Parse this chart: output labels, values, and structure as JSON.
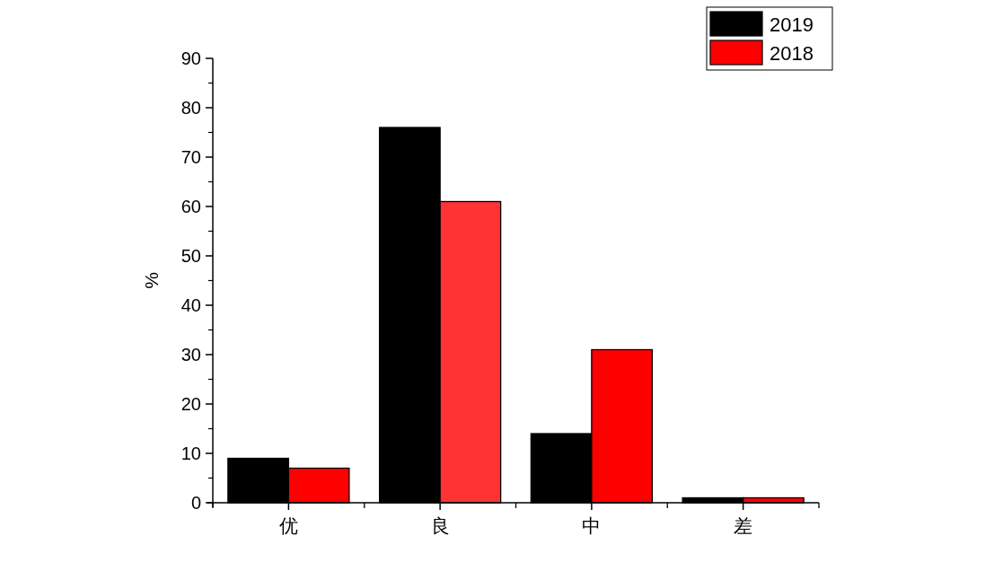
{
  "chart_data": {
    "type": "bar",
    "ylabel": "%",
    "categories": [
      "优",
      "良",
      "中",
      "差"
    ],
    "series": [
      {
        "name": "2019",
        "color": "#000000",
        "values": [
          9,
          76,
          14,
          1
        ]
      },
      {
        "name": "2018",
        "color": "#ff0000",
        "colors": [
          "#ff0000",
          "#ff3333",
          "#ff0000",
          "#ff0000"
        ],
        "values": [
          7,
          61,
          31,
          1
        ]
      }
    ],
    "ylim": [
      0,
      90
    ],
    "yticks": [
      0,
      10,
      20,
      30,
      40,
      50,
      60,
      70,
      80,
      90
    ],
    "grid": false,
    "legend": "top right"
  }
}
